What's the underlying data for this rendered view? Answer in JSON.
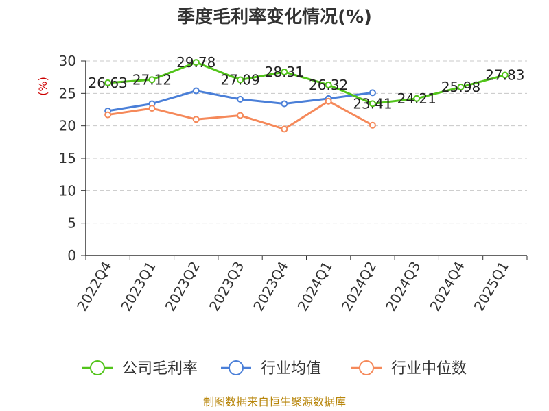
{
  "chart_data": {
    "type": "line",
    "title": "季度毛利率变化情况(%)",
    "ylabel": "(%)",
    "xlabel": "",
    "ylim": [
      0,
      30
    ],
    "yticks": [
      0,
      5,
      10,
      15,
      20,
      25,
      30
    ],
    "categories": [
      "2022Q4",
      "2023Q1",
      "2023Q2",
      "2023Q3",
      "2023Q4",
      "2024Q1",
      "2024Q2",
      "2024Q3",
      "2024Q4",
      "2025Q1"
    ],
    "grid": true,
    "legend_position": "bottom",
    "series": [
      {
        "name": "公司毛利率",
        "color": "#52c41a",
        "values": [
          26.63,
          27.12,
          29.78,
          27.09,
          28.31,
          26.32,
          23.41,
          24.21,
          25.98,
          27.83
        ],
        "labels": [
          "26.63",
          "27.12",
          "29.78",
          "27.09",
          "28.31",
          "26.32",
          "23.41",
          "24.21",
          "25.98",
          "27.83"
        ]
      },
      {
        "name": "行业均值",
        "color": "#4a7fd8",
        "values": [
          22.3,
          23.4,
          25.4,
          24.1,
          23.4,
          24.2,
          25.1,
          null,
          null,
          null
        ]
      },
      {
        "name": "行业中位数",
        "color": "#f5895a",
        "values": [
          21.7,
          22.7,
          21.0,
          21.6,
          19.5,
          23.8,
          20.1,
          null,
          null,
          null
        ]
      }
    ]
  },
  "source": "制图数据来自恒生聚源数据库"
}
